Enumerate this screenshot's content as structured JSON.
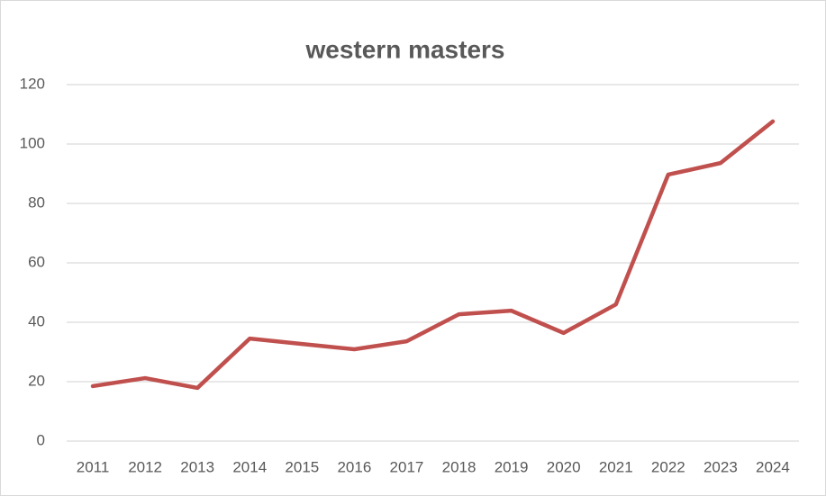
{
  "chart_data": {
    "type": "line",
    "title": "western masters",
    "categories": [
      "2011",
      "2012",
      "2013",
      "2014",
      "2015",
      "2016",
      "2017",
      "2018",
      "2019",
      "2020",
      "2021",
      "2022",
      "2023",
      "2024"
    ],
    "values": [
      18.5,
      21.2,
      17.9,
      34.5,
      32.7,
      30.9,
      33.6,
      42.7,
      43.9,
      36.4,
      46,
      89.7,
      93.6,
      107.6
    ],
    "color": "#c0504d",
    "ylim": [
      0,
      120
    ],
    "yticks": [
      0,
      20,
      40,
      60,
      80,
      100,
      120
    ],
    "grid": true
  }
}
